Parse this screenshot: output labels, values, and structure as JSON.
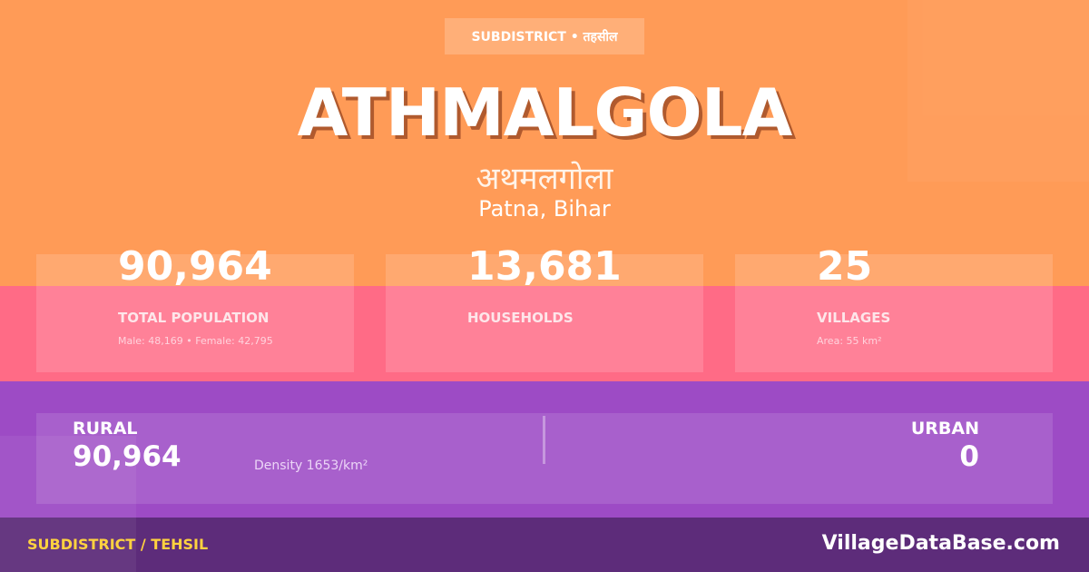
{
  "colors": {
    "top": "#ff9b57",
    "middle": "#ff6b86",
    "lower": "#9d4bc5",
    "footer": "#5d2c7a",
    "accent": "#ffd23f"
  },
  "badge": "SUBDISTRICT • तहसील",
  "title": "ATHMALGOLA",
  "title_hindi": "अथमलगोला",
  "location": "Patna, Bihar",
  "stats": [
    {
      "value": "90,964",
      "label": "TOTAL POPULATION",
      "sub": "Male: 48,169 • Female: 42,795"
    },
    {
      "value": "13,681",
      "label": "HOUSEHOLDS",
      "sub": ""
    },
    {
      "value": "25",
      "label": "VILLAGES",
      "sub": "Area: 55 km²"
    }
  ],
  "rural": {
    "label": "RURAL",
    "value": "90,964",
    "density": "Density 1653/km²"
  },
  "urban": {
    "label": "URBAN",
    "value": "0"
  },
  "footer": {
    "left": "SUBDISTRICT / TEHSIL",
    "right": "VillageDataBase.com"
  }
}
